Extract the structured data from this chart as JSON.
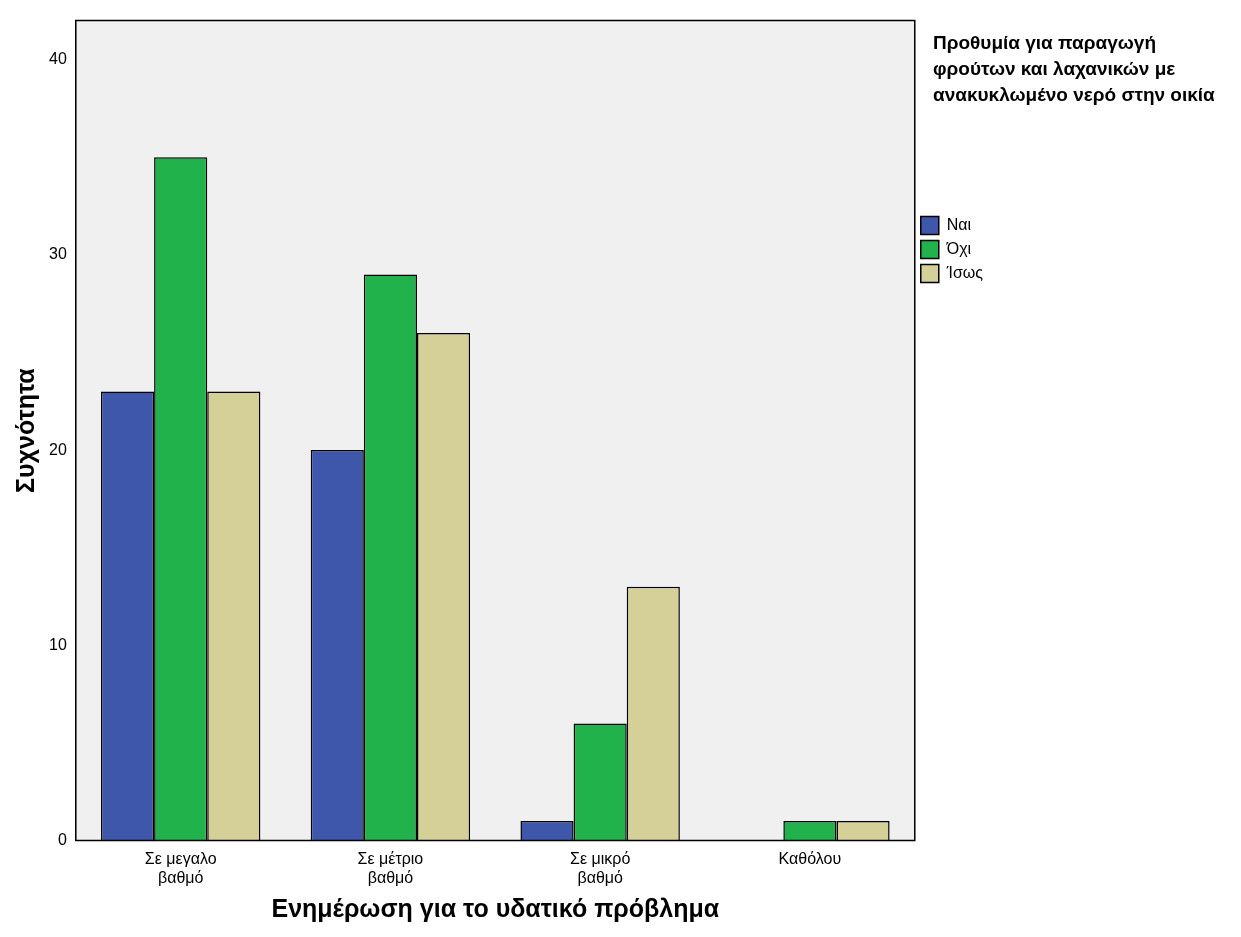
{
  "chart_data": {
    "type": "bar",
    "xlabel": "Ενημέρωση για το υδατικό πρόβλημα",
    "ylabel": "Συχνότητα",
    "legend_title": "Προθυμία για παραγωγή φρούτων και λαχανικών με ανακυκλωμένο νερό στην οικία",
    "categories": [
      "Σε μεγαλο βαθμό",
      "Σε μέτριο βαθμό",
      "Σε μικρό βαθμό",
      "Καθόλου"
    ],
    "series": [
      {
        "name": "Ναι",
        "color": "#3e57ab",
        "values": [
          23,
          20,
          1,
          0
        ]
      },
      {
        "name": "Όχι",
        "color": "#22b24c",
        "values": [
          35,
          29,
          6,
          1
        ]
      },
      {
        "name": "Ίσως",
        "color": "#d5cf98",
        "values": [
          23,
          26,
          13,
          1
        ]
      }
    ],
    "ylim": [
      0,
      42
    ],
    "yticks": [
      0,
      10,
      20,
      30,
      40
    ],
    "grid": false,
    "legend": "top right"
  }
}
